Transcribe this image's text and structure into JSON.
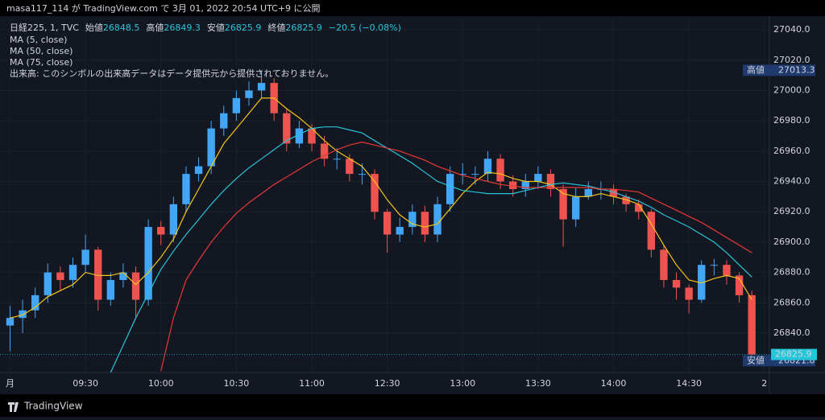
{
  "header": "masa117_114 が TradingView.com で 3月 01, 2022 20:54 UTC+9 に公開",
  "footer": "TradingView",
  "chart_data": {
    "type": "candlestick",
    "symbol": "日経225, 1, TVC",
    "ohlc_legend": [
      {
        "label": "始値",
        "value": 26848.5
      },
      {
        "label": "高値",
        "value": 26849.3
      },
      {
        "label": "安値",
        "value": 26825.9
      },
      {
        "label": "終値",
        "value": 26825.9
      }
    ],
    "change": "−20.5 (−0.08%)",
    "volume_note": "出来高: このシンボルの出来高データはデータ提供元から提供されておりません。",
    "up_color": "#42a5f5",
    "down_color": "#ef5350",
    "x": [
      0,
      5,
      10,
      15,
      20,
      25,
      30,
      35,
      40,
      45,
      50,
      55,
      60,
      65,
      70,
      75,
      80,
      85,
      90,
      95,
      100,
      105,
      110,
      115,
      120,
      125,
      130,
      135,
      140,
      145,
      150,
      155,
      160,
      165,
      170,
      175,
      180,
      185,
      190,
      195,
      200,
      205,
      210,
      215,
      220,
      225,
      230,
      235,
      240,
      245,
      250,
      255,
      260,
      265,
      270,
      275,
      280,
      285,
      290,
      295
    ],
    "open": [
      26845,
      26850,
      26855,
      26865,
      26880,
      26875,
      26885,
      26895,
      26862,
      26875,
      26880,
      26862,
      26910,
      26905,
      26925,
      26945,
      26950,
      26975,
      26985,
      26995,
      27000,
      27005,
      26985,
      26965,
      26975,
      26965,
      26955,
      26955,
      26945,
      26945,
      26920,
      26905,
      26910,
      26920,
      26905,
      26925,
      26945,
      26945,
      26945,
      26955,
      26940,
      26935,
      26940,
      26945,
      26935,
      26915,
      26930,
      26935,
      26935,
      26930,
      26925,
      26920,
      26895,
      26875,
      26870,
      26862,
      26885,
      26885,
      26878,
      26865
    ],
    "high": [
      26858,
      26862,
      26870,
      26886,
      26884,
      26890,
      26905,
      26897,
      26880,
      26886,
      26884,
      26915,
      26914,
      26930,
      26950,
      26956,
      26980,
      26990,
      27000,
      27006,
      27013.3,
      27008,
      26988,
      26980,
      26978,
      26970,
      26962,
      26958,
      26952,
      26948,
      26922,
      26916,
      26925,
      26924,
      26930,
      26950,
      26952,
      26950,
      26960,
      26958,
      26944,
      26945,
      26950,
      26948,
      26938,
      26936,
      26940,
      26940,
      26938,
      26932,
      26928,
      26922,
      26898,
      26880,
      26872,
      26888,
      26889,
      26888,
      26880,
      26868
    ],
    "low": [
      26828,
      26840,
      26850,
      26860,
      26868,
      26870,
      26880,
      26855,
      26858,
      26870,
      26850,
      26858,
      26898,
      26900,
      26920,
      26940,
      26945,
      26970,
      26980,
      26990,
      26995,
      26980,
      26960,
      26962,
      26960,
      26950,
      26948,
      26940,
      26938,
      26915,
      26893,
      26900,
      26905,
      26900,
      26900,
      26920,
      26938,
      26938,
      26940,
      26935,
      26930,
      26930,
      26935,
      26930,
      26897,
      26910,
      26928,
      26928,
      26925,
      26920,
      26915,
      26890,
      26870,
      26862,
      26853,
      26860,
      26878,
      26872,
      26860,
      26821.8
    ],
    "close": [
      26850,
      26855,
      26865,
      26880,
      26875,
      26885,
      26895,
      26862,
      26875,
      26880,
      26862,
      26910,
      26905,
      26925,
      26945,
      26950,
      26975,
      26985,
      26995,
      27000,
      27005,
      26985,
      26965,
      26975,
      26965,
      26955,
      26955,
      26945,
      26945,
      26920,
      26905,
      26910,
      26920,
      26905,
      26925,
      26945,
      26945,
      26945,
      26955,
      26940,
      26935,
      26940,
      26945,
      26935,
      26915,
      26930,
      26935,
      26935,
      26930,
      26925,
      26920,
      26895,
      26875,
      26870,
      26862,
      26885,
      26885,
      26878,
      26865,
      26825.9
    ],
    "series": [
      {
        "name": "MA (5, close)",
        "color": "#f5c518",
        "values": [
          26850,
          26852,
          26857,
          26864,
          26868,
          26872,
          26880,
          26878,
          26878,
          26880,
          26872,
          26880,
          26890,
          26902,
          26920,
          26935,
          26950,
          26965,
          26975,
          26985,
          26995,
          26995,
          26988,
          26982,
          26975,
          26967,
          26960,
          26955,
          26950,
          26940,
          26928,
          26918,
          26912,
          26910,
          26912,
          26922,
          26932,
          26940,
          26946,
          26945,
          26942,
          26940,
          26940,
          26938,
          26932,
          26930,
          26930,
          26932,
          26930,
          26928,
          26925,
          26912,
          26898,
          26885,
          26875,
          26873,
          26876,
          26878,
          26876,
          26862
        ]
      },
      {
        "name": "MA (50, close)",
        "color": "#26c6da",
        "values": [
          null,
          null,
          null,
          null,
          null,
          null,
          null,
          null,
          26814,
          26832,
          26850,
          26866,
          26882,
          26894,
          26905,
          26915,
          26925,
          26934,
          26942,
          26949,
          26955,
          26961,
          26967,
          26971,
          26975,
          26976,
          26976,
          26974,
          26972,
          26967,
          26962,
          26957,
          26952,
          26946,
          26940,
          26937,
          26934,
          26933,
          26932,
          26932,
          26932,
          26934,
          26936,
          26938,
          26939,
          26938,
          26937,
          26935,
          26933,
          26930,
          26927,
          26923,
          26918,
          26914,
          26910,
          26905,
          26900,
          26893,
          26885,
          26877
        ]
      },
      {
        "name": "MA (75, close)",
        "color": "#e53935",
        "values": [
          null,
          null,
          null,
          null,
          null,
          null,
          null,
          null,
          null,
          null,
          null,
          null,
          26815,
          26850,
          26875,
          26888,
          26900,
          26910,
          26919,
          26926,
          26932,
          26938,
          26943,
          26948,
          26953,
          26957,
          26961,
          26964,
          26966,
          26964,
          26962,
          26960,
          26957,
          26954,
          26950,
          26947,
          26944,
          26942,
          26940,
          26938,
          26937,
          26936,
          26936,
          26936,
          26936,
          26936,
          26936,
          26935,
          26935,
          26934,
          26933,
          26929,
          26925,
          26921,
          26917,
          26913,
          26908,
          26903,
          26898,
          26893
        ]
      }
    ],
    "price_labels": [
      {
        "label": "高値",
        "value": 27013.3
      },
      {
        "label": "安値",
        "value": 26821.8
      }
    ],
    "last_price": 26825.9,
    "xlim": [
      -4,
      302
    ],
    "xticks": [
      {
        "value": 0,
        "label": "月"
      },
      {
        "value": 30,
        "label": "09:30"
      },
      {
        "value": 60,
        "label": "10:00"
      },
      {
        "value": 90,
        "label": "10:30"
      },
      {
        "value": 120,
        "label": "11:00"
      },
      {
        "value": 150,
        "label": "12:30"
      },
      {
        "value": 180,
        "label": "13:00"
      },
      {
        "value": 210,
        "label": "13:30"
      },
      {
        "value": 240,
        "label": "14:00"
      },
      {
        "value": 270,
        "label": "14:30"
      },
      {
        "value": 300,
        "label": "2"
      }
    ],
    "ylim": [
      26814,
      27048
    ],
    "yticks": [
      {
        "value": 26840,
        "label": "26840.0"
      },
      {
        "value": 26860,
        "label": "26860.0"
      },
      {
        "value": 26880,
        "label": "26880.0"
      },
      {
        "value": 26900,
        "label": "26900.0"
      },
      {
        "value": 26920,
        "label": "26920.0"
      },
      {
        "value": 26940,
        "label": "26940.0"
      },
      {
        "value": 26960,
        "label": "26960.0"
      },
      {
        "value": 26980,
        "label": "26980.0"
      },
      {
        "value": 27000,
        "label": "27000.0"
      },
      {
        "value": 27020,
        "label": "27020.0"
      },
      {
        "value": 27040,
        "label": "27040.0"
      }
    ],
    "grid": true
  }
}
